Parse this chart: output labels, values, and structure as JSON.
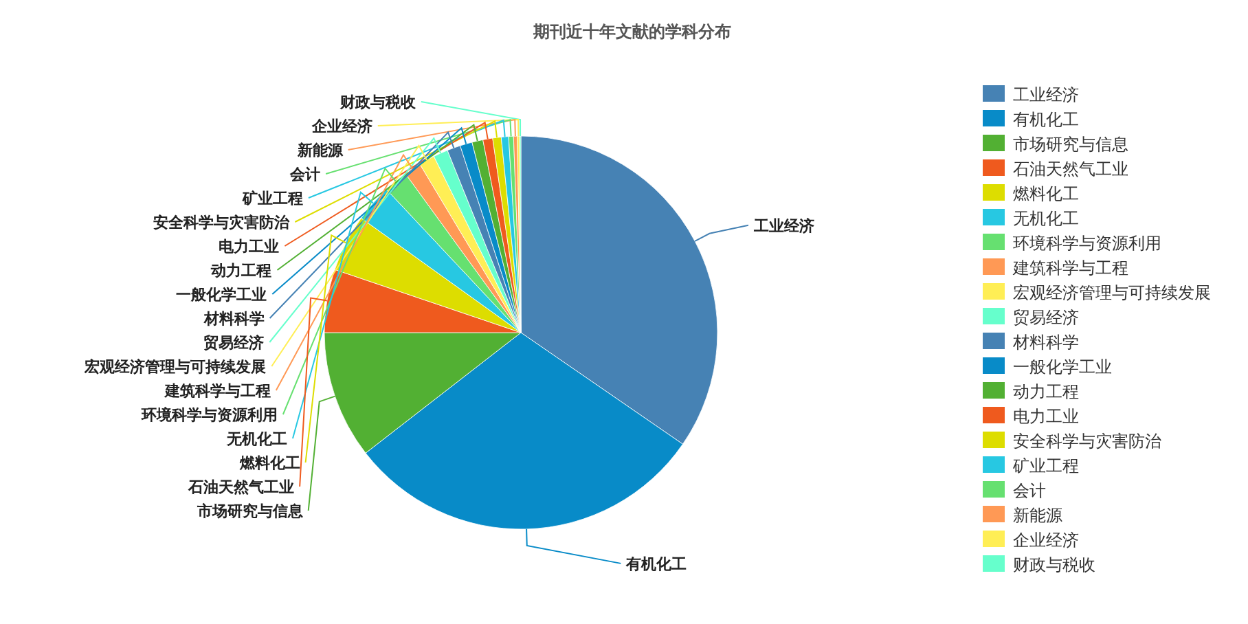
{
  "chart_data": {
    "type": "pie",
    "title": "期刊近十年文献的学科分布",
    "legend": "right",
    "categories": [
      "工业经济",
      "有机化工",
      "市场研究与信息",
      "石油天然气工业",
      "燃料化工",
      "无机化工",
      "环境科学与资源利用",
      "建筑科学与工程",
      "宏观经济管理与可持续发展",
      "贸易经济",
      "材料科学",
      "一般化学工业",
      "动力工程",
      "电力工业",
      "安全科学与灾害防治",
      "矿业工程",
      "会计",
      "新能源",
      "企业经济",
      "财政与税收"
    ],
    "values": [
      34.6,
      29.9,
      10.5,
      5.2,
      4.7,
      3.1,
      2.0,
      1.4,
      1.3,
      1.2,
      1.1,
      1.0,
      0.9,
      0.8,
      0.7,
      0.6,
      0.4,
      0.3,
      0.2,
      0.1
    ],
    "colors": [
      "#4682b4",
      "#088bc8",
      "#52b033",
      "#ef5a1e",
      "#dddd00",
      "#27c8e2",
      "#66e070",
      "#ff9955",
      "#ffee55",
      "#66ffcc",
      "#4682b4",
      "#088bc8",
      "#52b033",
      "#ef5a1e",
      "#dddd00",
      "#27c8e2",
      "#66e070",
      "#ff9955",
      "#ffee55",
      "#66ffcc"
    ]
  }
}
